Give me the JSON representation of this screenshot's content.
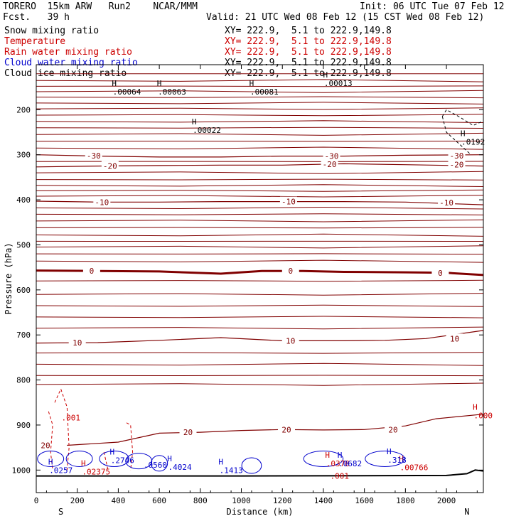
{
  "header": {
    "model": "TORERO  15km ARW   Run2    NCAR/MMM",
    "fcst": "Fcst.   39 h",
    "init": "Init: 06 UTC Tue 07 Feb 12",
    "valid": "Valid: 21 UTC Wed 08 Feb 12 (15 CST Wed 08 Feb 12)"
  },
  "fields": [
    {
      "name": "Snow mixing ratio",
      "color": "#000000",
      "xy": "XY= 222.9,  5.1 to 222.9,149.8"
    },
    {
      "name": "Temperature",
      "color": "#cc0000",
      "xy": "XY= 222.9,  5.1 to 222.9,149.8"
    },
    {
      "name": "Rain water mixing ratio",
      "color": "#cc0000",
      "xy": "XY= 222.9,  5.1 to 222.9,149.8"
    },
    {
      "name": "Cloud water mixing ratio",
      "color": "#0000cc",
      "xy": "XY= 222.9,  5.1 to 222.9,149.8"
    },
    {
      "name": "Cloud ice mixing ratio",
      "color": "#000000",
      "xy": "XY= 222.9,  5.1 to 222.9,149.8"
    }
  ],
  "chart_data": {
    "type": "contour-cross-section",
    "xlabel": "Distance (km)",
    "ylabel": "Pressure (hPa)",
    "xlim": [
      0,
      2180
    ],
    "ylim": [
      1050,
      100
    ],
    "x_ticks": [
      0,
      200,
      400,
      600,
      800,
      1000,
      1200,
      1400,
      1600,
      1800,
      2000
    ],
    "x_tick_labels": [
      "0",
      "200",
      "400",
      "600",
      "800",
      "1000",
      "1200",
      "1400",
      "1600",
      "1800",
      "2000"
    ],
    "y_ticks": [
      200,
      300,
      400,
      500,
      600,
      700,
      800,
      900,
      1000
    ],
    "y_tick_labels": [
      "200",
      "300",
      "400",
      "500",
      "600",
      "700",
      "800",
      "900",
      "1000"
    ],
    "end_labels": {
      "left": "S",
      "right": "N"
    },
    "temperature_contours": [
      {
        "level": -30,
        "label": "-30",
        "points": [
          [
            0,
            300
          ],
          [
            300,
            303
          ],
          [
            600,
            305
          ],
          [
            900,
            305
          ],
          [
            1200,
            303
          ],
          [
            1500,
            303
          ],
          [
            1800,
            301
          ],
          [
            2180,
            300
          ]
        ],
        "labels_at": [
          [
            280,
            302
          ],
          [
            1440,
            303
          ],
          [
            2050,
            302
          ]
        ]
      },
      {
        "level": -20,
        "label": "-20",
        "points": [
          [
            0,
            327
          ],
          [
            300,
            325
          ],
          [
            600,
            324
          ],
          [
            900,
            323
          ],
          [
            1200,
            323
          ],
          [
            1500,
            320
          ],
          [
            1800,
            322
          ],
          [
            2180,
            325
          ]
        ],
        "labels_at": [
          [
            360,
            325
          ],
          [
            1430,
            321
          ],
          [
            2050,
            322
          ]
        ]
      },
      {
        "level": -10,
        "label": "-10",
        "points": [
          [
            0,
            403
          ],
          [
            300,
            405
          ],
          [
            600,
            405
          ],
          [
            900,
            404
          ],
          [
            1200,
            404
          ],
          [
            1500,
            404
          ],
          [
            1800,
            405
          ],
          [
            2180,
            411
          ]
        ],
        "labels_at": [
          [
            320,
            405
          ],
          [
            1230,
            404
          ],
          [
            2000,
            406
          ]
        ]
      },
      {
        "level": 0,
        "label": "0",
        "points": [
          [
            0,
            557
          ],
          [
            300,
            558
          ],
          [
            600,
            559
          ],
          [
            900,
            564
          ],
          [
            1100,
            558
          ],
          [
            1300,
            558
          ],
          [
            1500,
            560
          ],
          [
            1800,
            561
          ],
          [
            2000,
            562
          ],
          [
            2180,
            567
          ]
        ],
        "labels_at": [
          [
            270,
            558
          ],
          [
            1240,
            558
          ],
          [
            1970,
            562
          ]
        ]
      },
      {
        "level": 10,
        "label": "10",
        "points": [
          [
            0,
            718
          ],
          [
            300,
            717
          ],
          [
            600,
            712
          ],
          [
            900,
            706
          ],
          [
            1200,
            713
          ],
          [
            1500,
            713
          ],
          [
            1700,
            712
          ],
          [
            1900,
            708
          ],
          [
            2180,
            690
          ]
        ],
        "labels_at": [
          [
            200,
            717
          ],
          [
            1240,
            713
          ],
          [
            2040,
            708
          ]
        ]
      },
      {
        "level": 20,
        "label": "20",
        "points": [
          [
            150,
            945
          ],
          [
            400,
            938
          ],
          [
            600,
            918
          ],
          [
            800,
            916
          ],
          [
            1000,
            912
          ],
          [
            1200,
            910
          ],
          [
            1400,
            911
          ],
          [
            1600,
            910
          ],
          [
            1800,
            902
          ],
          [
            1950,
            886
          ],
          [
            2180,
            876
          ]
        ],
        "labels_at": [
          [
            45,
            945
          ],
          [
            740,
            916
          ],
          [
            1220,
            910
          ],
          [
            1740,
            910
          ]
        ]
      }
    ],
    "temperature_extra_isotherms_hpa": [
      120,
      135,
      148,
      160,
      172,
      185,
      198,
      212,
      226,
      240,
      255,
      270,
      285,
      315,
      340,
      355,
      368,
      380,
      392,
      418,
      432,
      447,
      462,
      478,
      492,
      505,
      520,
      536,
      580,
      610,
      635,
      660,
      685,
      740,
      765,
      790,
      810
    ],
    "snow_maxima": [
      {
        "label": "H",
        "value": ".00064",
        "x": 380,
        "p": 157
      },
      {
        "label": "H",
        "value": ".00063",
        "x": 600,
        "p": 157
      },
      {
        "label": "H",
        "value": ".00081",
        "x": 1050,
        "p": 157
      },
      {
        "label": "H",
        "value": ".00013",
        "x": 1410,
        "p": 138
      },
      {
        "label": "H",
        "value": ".00022",
        "x": 770,
        "p": 242
      },
      {
        "label": "H",
        "value": ".0192",
        "x": 2080,
        "p": 268
      }
    ],
    "rain_maxima": [
      {
        "label": "",
        "value": ".001",
        "x": 130,
        "p": 880
      },
      {
        "label": "H",
        "value": ".02375",
        "x": 230,
        "p": 1000
      },
      {
        "label": "H",
        "value": ".0378",
        "x": 1420,
        "p": 982
      },
      {
        "label": "H",
        "value": ".00766",
        "x": 1780,
        "p": 991
      },
      {
        "label": "H",
        "value": ".000",
        "x": 2140,
        "p": 876
      },
      {
        "label": "",
        "value": ".001",
        "x": 1440,
        "p": 1010
      }
    ],
    "cloud_water_maxima": [
      {
        "label": "H",
        "value": ".0257",
        "x": 70,
        "p": 997
      },
      {
        "label": "H",
        "value": ".2746",
        "x": 370,
        "p": 975
      },
      {
        "label": "H",
        "value": ".4024",
        "x": 650,
        "p": 990
      },
      {
        "label": "H",
        "value": ".1413",
        "x": 900,
        "p": 997
      },
      {
        "label": "H",
        "value": ".0682",
        "x": 1480,
        "p": 982
      },
      {
        "label": "H",
        "value": ".318",
        "x": 1720,
        "p": 974
      },
      {
        "label": "",
        "value": ".0560",
        "x": 530,
        "p": 985
      }
    ],
    "terrain_surface_hpa": [
      [
        0,
        1013
      ],
      [
        1000,
        1013
      ],
      [
        2000,
        1012
      ],
      [
        2100,
        1008
      ],
      [
        2140,
        1000
      ],
      [
        2180,
        1002
      ]
    ]
  }
}
